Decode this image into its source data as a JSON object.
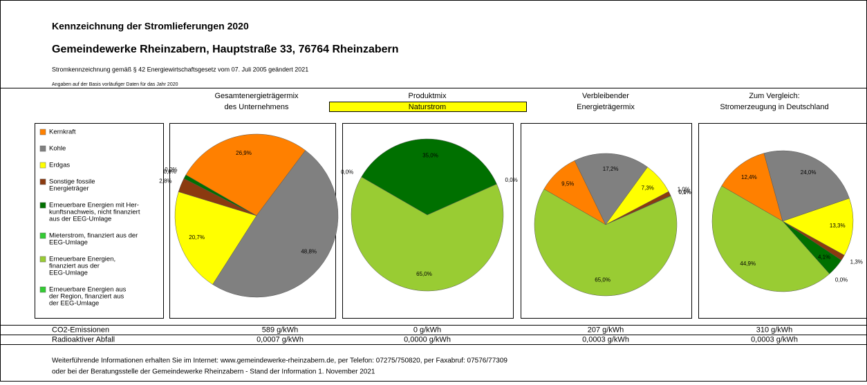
{
  "header": {
    "title": "Kennzeichnung der Stromlieferungen 2020",
    "subtitle": "Gemeindewerke Rheinzabern, Hauptstraße 33, 76764 Rheinzabern",
    "note": "Stromkennzeichnung gemäß § 42 Energiewirtschaftsgesetz vom 07. Juli 2005 geändert 2021",
    "basis": "Angaben auf der Basis vorläufiger Daten für das Jahr 2020"
  },
  "legend": {
    "labels": [
      [
        "Kernkraft"
      ],
      [
        "Kohle"
      ],
      [
        "Erdgas"
      ],
      [
        "Sonstige fossile",
        "Energieträger"
      ],
      [
        "Erneuerbare Energien mit Her-",
        "kunftsnachweis, nicht finanziert",
        "aus der EEG-Umlage"
      ],
      [
        "Mieterstrom, finanziert aus der",
        "EEG-Umlage"
      ],
      [
        "Erneuerbare Energien,",
        "finanziert aus der",
        "EEG-Umlage"
      ],
      [
        "Erneuerbare Energien aus",
        "der Region, finanziert aus",
        "der EEG-Umlage"
      ]
    ],
    "colors": [
      "#ff8000",
      "#808080",
      "#ffff00",
      "#8b3a10",
      "#007000",
      "#33cc33",
      "#99cc33",
      "#33cc33"
    ]
  },
  "chart_data": [
    {
      "type": "pie",
      "title": [
        "Gesamtenergieträgermix",
        "des Unternehmens"
      ],
      "values": [
        26.9,
        48.8,
        20.7,
        2.8,
        0.8,
        0.0,
        null,
        null
      ],
      "value_labels": [
        "26,9%",
        "48,8%",
        "20,7%",
        "2,8%",
        "0,8%",
        "0,0%",
        null,
        null
      ]
    },
    {
      "type": "pie",
      "title": [
        "Produktmix"
      ],
      "subtitle": "Naturstrom",
      "values": [
        null,
        null,
        null,
        null,
        35.0,
        0.0,
        65.0,
        0.0
      ],
      "value_labels": [
        null,
        null,
        null,
        null,
        "35,0%",
        "0,0%",
        "65,0%",
        "0,0%"
      ]
    },
    {
      "type": "pie",
      "title": [
        "Verbleibender",
        "Energieträgermix"
      ],
      "values": [
        9.5,
        17.2,
        7.3,
        1.0,
        0.1,
        0.0,
        65.0,
        null
      ],
      "value_labels": [
        "9,5%",
        "17,2%",
        "7,3%",
        "1,0%",
        "0,1%",
        "0,0%",
        "65,0%",
        null
      ]
    },
    {
      "type": "pie",
      "title": [
        "Zum Vergleich:",
        "Stromerzeugung in Deutschland"
      ],
      "values": [
        12.4,
        24.0,
        13.3,
        1.3,
        4.1,
        0.0,
        44.9,
        null
      ],
      "value_labels": [
        "12,4%",
        "24,0%",
        "13,3%",
        "1,3%",
        "4,1%",
        "0,0%",
        "44,9%",
        null
      ]
    }
  ],
  "table": {
    "rows": [
      [
        "CO2-Emissionen",
        "589 g/kWh",
        "0 g/kWh",
        "207 g/kWh",
        "310 g/kWh"
      ],
      [
        "Radioaktiver Abfall",
        "0,0007 g/kWh",
        "0,0000 g/kWh",
        "0,0003 g/kWh",
        "0,0003 g/kWh"
      ]
    ]
  },
  "footer": [
    "Weiterführende Informationen erhalten Sie im Internet: www.gemeindewerke-rheinzabern.de, per Telefon: 07275/750820, per Faxabruf: 07576/77309",
    "oder bei der Beratungsstelle der Gemeindewerke Rheinzabern - Stand der Information 1. November 2021"
  ]
}
